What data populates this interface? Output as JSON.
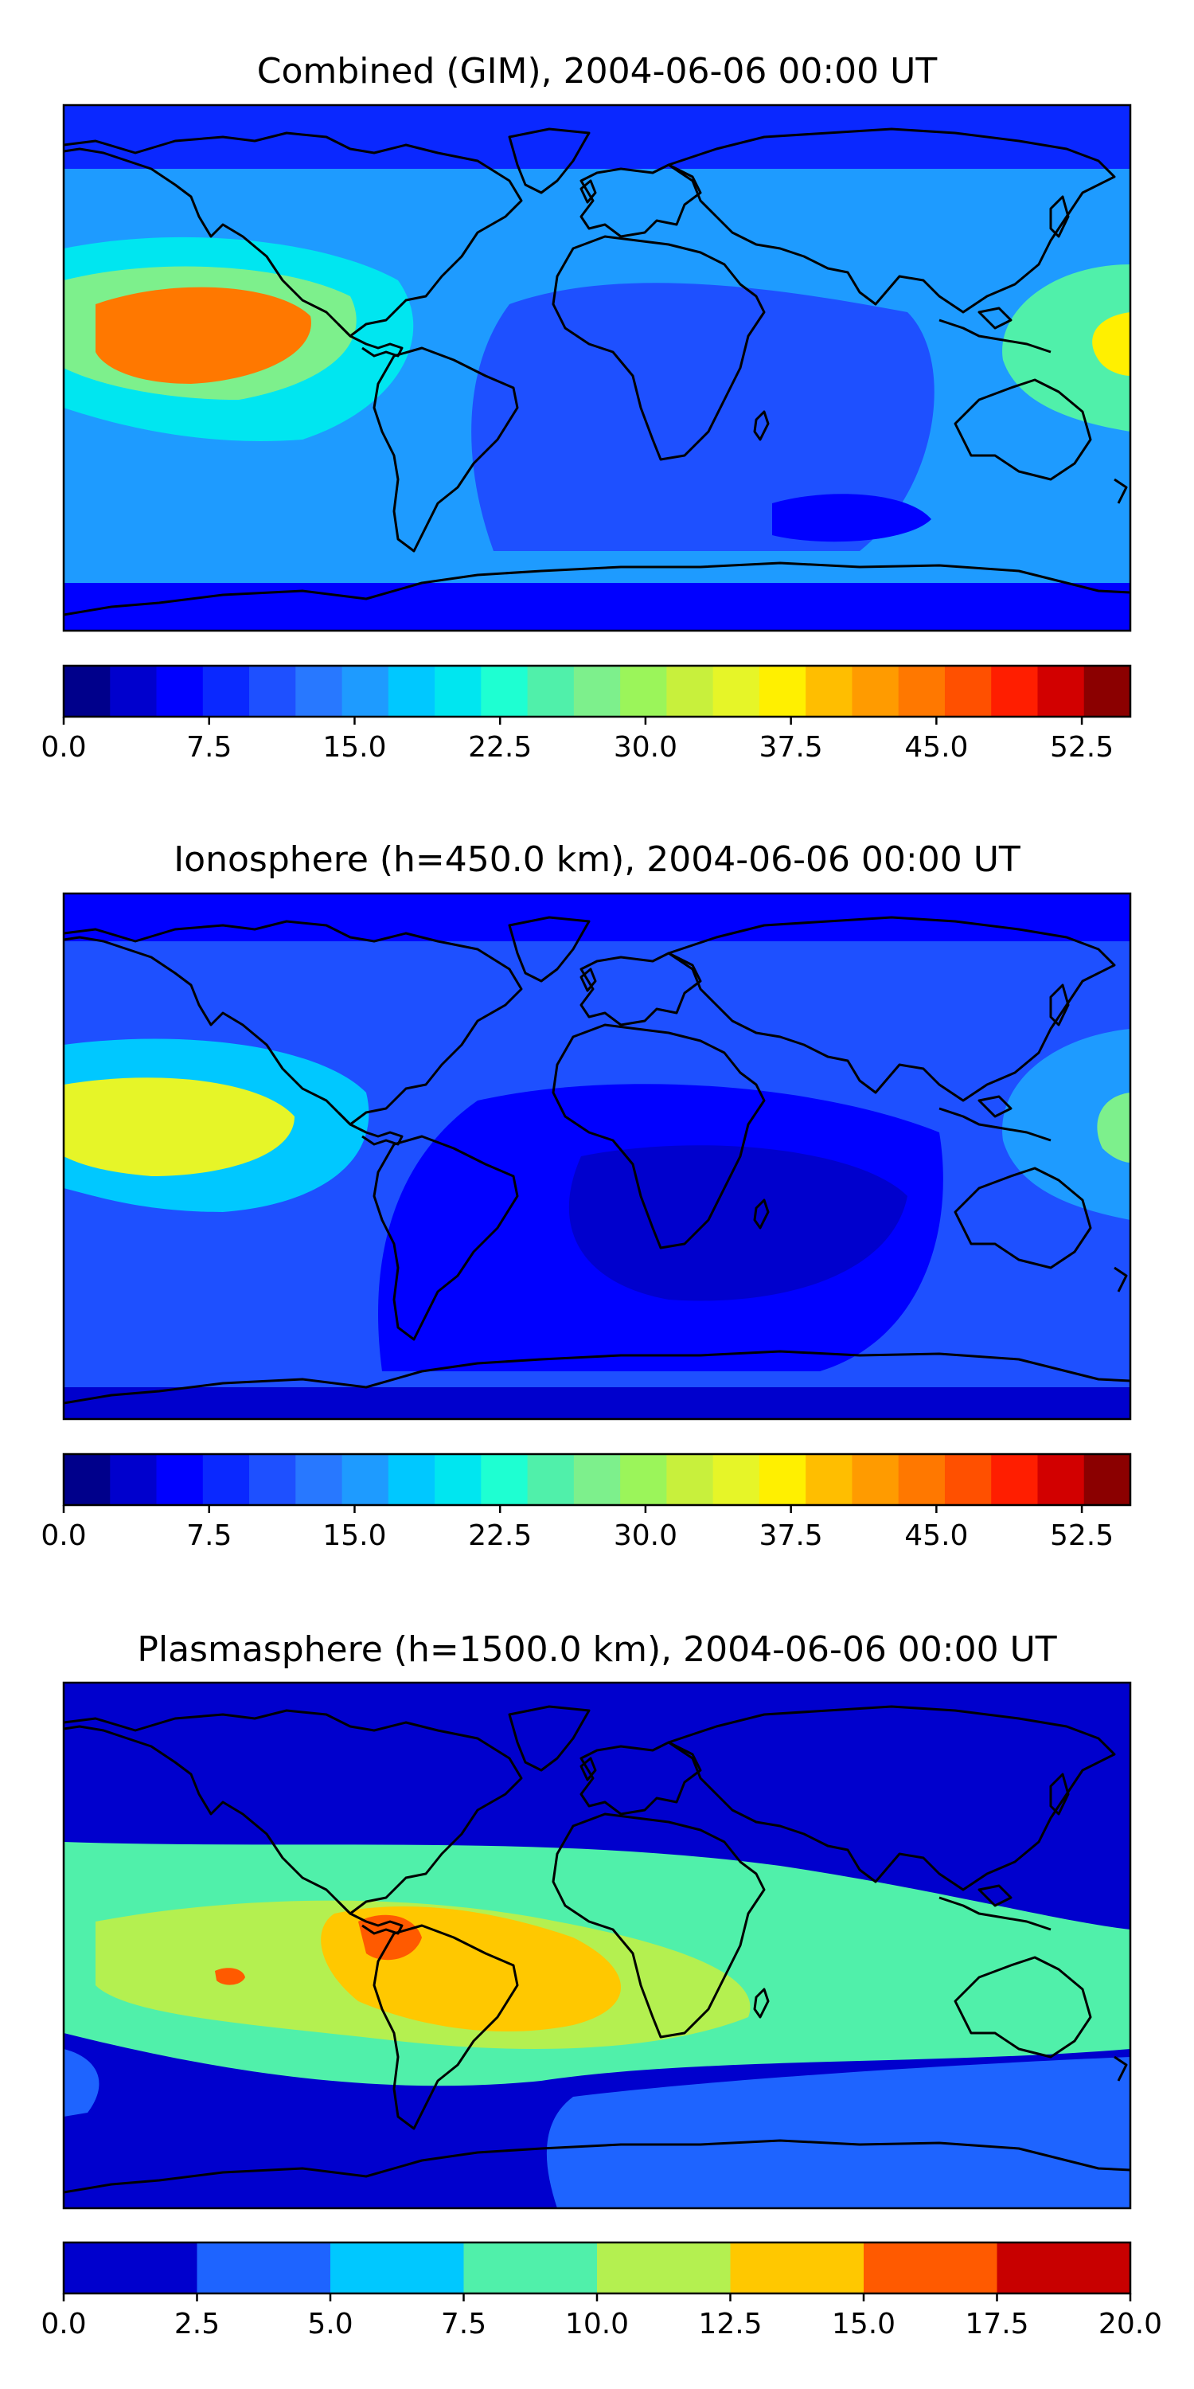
{
  "maps": [
    {
      "id": "combined",
      "title": "Combined (GIM), 2004-06-06 00:00 UT",
      "colorbar": {
        "min": 0.0,
        "max": 55.0,
        "step": 2.5,
        "tick_labels": [
          "0.0",
          "7.5",
          "15.0",
          "22.5",
          "30.0",
          "37.5",
          "45.0",
          "52.5"
        ],
        "tick_values": [
          0.0,
          7.5,
          15.0,
          22.5,
          30.0,
          37.5,
          45.0,
          52.5
        ],
        "colors": [
          "#00008b",
          "#0000cd",
          "#0000ff",
          "#0a28ff",
          "#1e50ff",
          "#2878ff",
          "#1e9bff",
          "#00c8ff",
          "#00e6f0",
          "#1effd2",
          "#50f0aa",
          "#7df08c",
          "#9bf55a",
          "#c8f03c",
          "#e6f528",
          "#fff000",
          "#ffbe00",
          "#ff9b00",
          "#ff7800",
          "#ff5000",
          "#ff1e00",
          "#d20000",
          "#8b0000"
        ]
      },
      "features": [
        {
          "name": "pacific-high-region",
          "level": 45.0
        },
        {
          "name": "west-pacific-high-region",
          "level": 37.5
        },
        {
          "name": "south-atlantic-indian-low-region",
          "level": 5.0
        }
      ]
    },
    {
      "id": "ionosphere",
      "title": "Ionosphere  (h=450.0 km), 2004-06-06 00:00 UT",
      "colorbar": {
        "min": 0.0,
        "max": 55.0,
        "step": 2.5,
        "tick_labels": [
          "0.0",
          "7.5",
          "15.0",
          "22.5",
          "30.0",
          "37.5",
          "45.0",
          "52.5"
        ],
        "tick_values": [
          0.0,
          7.5,
          15.0,
          22.5,
          30.0,
          37.5,
          45.0,
          52.5
        ],
        "colors": [
          "#00008b",
          "#0000cd",
          "#0000ff",
          "#0a28ff",
          "#1e50ff",
          "#2878ff",
          "#1e9bff",
          "#00c8ff",
          "#00e6f0",
          "#1effd2",
          "#50f0aa",
          "#7df08c",
          "#9bf55a",
          "#c8f03c",
          "#e6f528",
          "#fff000",
          "#ffbe00",
          "#ff9b00",
          "#ff7800",
          "#ff5000",
          "#ff1e00",
          "#d20000",
          "#8b0000"
        ]
      },
      "features": [
        {
          "name": "pacific-high-region",
          "level": 35.0
        },
        {
          "name": "west-pacific-high-region",
          "level": 27.5
        },
        {
          "name": "south-atlantic-indian-low-region",
          "level": 2.5
        }
      ]
    },
    {
      "id": "plasmasphere",
      "title": "Plasmasphere (h=1500.0 km), 2004-06-06 00:00 UT",
      "colorbar": {
        "min": 0.0,
        "max": 20.0,
        "step": 2.5,
        "tick_labels": [
          "0.0",
          "2.5",
          "5.0",
          "7.5",
          "10.0",
          "12.5",
          "15.0",
          "17.5",
          "20.0"
        ],
        "tick_values": [
          0.0,
          2.5,
          5.0,
          7.5,
          10.0,
          12.5,
          15.0,
          17.5,
          20.0
        ],
        "colors": [
          "#0000cd",
          "#1e64ff",
          "#00c8ff",
          "#50f0aa",
          "#b4f050",
          "#ffc800",
          "#ff5a00",
          "#c80000"
        ]
      },
      "features": [
        {
          "name": "south-america-high-region",
          "level": 12.5
        },
        {
          "name": "equatorial-band-region",
          "level": 7.5
        },
        {
          "name": "southern-low-region",
          "level": 2.5
        }
      ]
    }
  ]
}
